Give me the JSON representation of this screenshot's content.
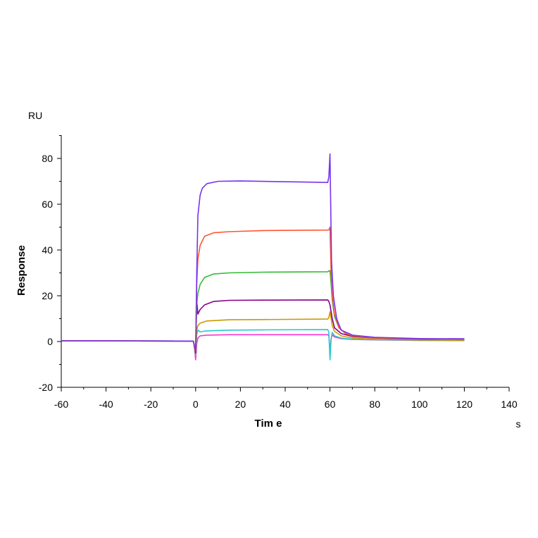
{
  "chart_data": {
    "type": "line",
    "xlabel": "Tim e",
    "ylabel": "Response",
    "x_unit": "s",
    "y_unit": "RU",
    "xlim": [
      -60,
      140
    ],
    "ylim": [
      -20,
      90
    ],
    "x_ticks": [
      "-60",
      "-40",
      "-20",
      "0",
      "20",
      "40",
      "60",
      "80",
      "100",
      "120",
      "140"
    ],
    "y_ticks": [
      "-20",
      "0",
      "20",
      "40",
      "60",
      "80"
    ],
    "grid": false,
    "series": [
      {
        "color": "#ff33cc",
        "values": [
          [
            -60,
            0.3
          ],
          [
            -1,
            0.2
          ],
          [
            -0.5,
            -3
          ],
          [
            0,
            -8
          ],
          [
            0.5,
            -1
          ],
          [
            1,
            1.5
          ],
          [
            2,
            2.5
          ],
          [
            5,
            2.8
          ],
          [
            15,
            3
          ],
          [
            30,
            3
          ],
          [
            59,
            3
          ],
          [
            59.5,
            2.5
          ],
          [
            60,
            -4
          ],
          [
            60.5,
            1
          ],
          [
            61,
            3
          ],
          [
            62,
            2
          ],
          [
            65,
            1.3
          ],
          [
            70,
            0.9
          ],
          [
            80,
            0.7
          ],
          [
            100,
            0.5
          ],
          [
            120,
            0.4
          ]
        ]
      },
      {
        "color": "#22cccc",
        "values": [
          [
            -60,
            0.3
          ],
          [
            -1,
            0.2
          ],
          [
            -0.5,
            -3
          ],
          [
            0,
            -6
          ],
          [
            0.5,
            3
          ],
          [
            1,
            5
          ],
          [
            2,
            4.2
          ],
          [
            4,
            4.6
          ],
          [
            15,
            5
          ],
          [
            30,
            5.1
          ],
          [
            59,
            5.2
          ],
          [
            59.5,
            4
          ],
          [
            60,
            -8
          ],
          [
            60.5,
            1
          ],
          [
            61,
            4
          ],
          [
            62,
            2.5
          ],
          [
            65,
            1.5
          ],
          [
            70,
            1
          ],
          [
            80,
            0.8
          ],
          [
            100,
            0.6
          ],
          [
            120,
            0.5
          ]
        ]
      },
      {
        "color": "#cc9900",
        "values": [
          [
            -60,
            0.3
          ],
          [
            -1,
            0.2
          ],
          [
            -0.5,
            -3
          ],
          [
            0,
            -5
          ],
          [
            0.5,
            5
          ],
          [
            1,
            7
          ],
          [
            2,
            8
          ],
          [
            5,
            9
          ],
          [
            15,
            9.5
          ],
          [
            30,
            9.6
          ],
          [
            59,
            9.8
          ],
          [
            59.5,
            10.5
          ],
          [
            60,
            13
          ],
          [
            61,
            7
          ],
          [
            62,
            4.5
          ],
          [
            65,
            2.5
          ],
          [
            70,
            1.5
          ],
          [
            80,
            1
          ],
          [
            100,
            0.7
          ],
          [
            120,
            0.6
          ]
        ]
      },
      {
        "color": "#880088",
        "values": [
          [
            -60,
            0.3
          ],
          [
            -1,
            0.2
          ],
          [
            -0.5,
            -2
          ],
          [
            0,
            -5
          ],
          [
            0.5,
            18
          ],
          [
            1,
            12
          ],
          [
            2,
            14
          ],
          [
            4,
            16
          ],
          [
            8,
            17.5
          ],
          [
            15,
            18
          ],
          [
            30,
            18.1
          ],
          [
            59,
            18.2
          ],
          [
            59.5,
            17.5
          ],
          [
            60,
            16
          ],
          [
            61,
            10
          ],
          [
            62,
            6
          ],
          [
            65,
            3.5
          ],
          [
            70,
            2.2
          ],
          [
            80,
            1.5
          ],
          [
            100,
            1.1
          ],
          [
            120,
            1
          ]
        ]
      },
      {
        "color": "#33bb33",
        "values": [
          [
            -60,
            0.3
          ],
          [
            -1,
            0.2
          ],
          [
            -0.5,
            -2
          ],
          [
            0,
            -4
          ],
          [
            0.5,
            16
          ],
          [
            1,
            21
          ],
          [
            2,
            25
          ],
          [
            4,
            28
          ],
          [
            8,
            29.5
          ],
          [
            15,
            30
          ],
          [
            30,
            30.3
          ],
          [
            59,
            30.5
          ],
          [
            59.5,
            30.8
          ],
          [
            60,
            31
          ],
          [
            60.5,
            25
          ],
          [
            61,
            18
          ],
          [
            62,
            11
          ],
          [
            64,
            6
          ],
          [
            67,
            3.5
          ],
          [
            70,
            2.5
          ],
          [
            80,
            1.6
          ],
          [
            100,
            1.2
          ],
          [
            120,
            1
          ]
        ]
      },
      {
        "color": "#ff5533",
        "values": [
          [
            -60,
            0.3
          ],
          [
            -1,
            0.2
          ],
          [
            -0.5,
            -2
          ],
          [
            0,
            -4
          ],
          [
            0.5,
            25
          ],
          [
            1,
            36
          ],
          [
            2,
            42
          ],
          [
            4,
            46
          ],
          [
            8,
            47.5
          ],
          [
            15,
            48
          ],
          [
            30,
            48.5
          ],
          [
            59,
            48.7
          ],
          [
            59.5,
            48.8
          ],
          [
            60,
            50
          ],
          [
            60.5,
            30
          ],
          [
            61,
            20
          ],
          [
            62,
            12
          ],
          [
            64,
            6
          ],
          [
            67,
            3.5
          ],
          [
            70,
            2.5
          ],
          [
            80,
            1.6
          ],
          [
            100,
            1.2
          ],
          [
            120,
            1
          ]
        ]
      },
      {
        "color": "#7733ee",
        "values": [
          [
            -60,
            0.3
          ],
          [
            -1,
            0.2
          ],
          [
            -0.5,
            -2
          ],
          [
            0,
            -4
          ],
          [
            0.5,
            30
          ],
          [
            1,
            55
          ],
          [
            2,
            64
          ],
          [
            3,
            67
          ],
          [
            5,
            69
          ],
          [
            10,
            70
          ],
          [
            20,
            70.2
          ],
          [
            40,
            69.8
          ],
          [
            59,
            69.5
          ],
          [
            59.5,
            72
          ],
          [
            60,
            82
          ],
          [
            60.3,
            60
          ],
          [
            60.7,
            35
          ],
          [
            61.5,
            20
          ],
          [
            63,
            10
          ],
          [
            65,
            5
          ],
          [
            70,
            2.8
          ],
          [
            80,
            1.8
          ],
          [
            100,
            1.3
          ],
          [
            120,
            1.2
          ]
        ]
      }
    ]
  }
}
